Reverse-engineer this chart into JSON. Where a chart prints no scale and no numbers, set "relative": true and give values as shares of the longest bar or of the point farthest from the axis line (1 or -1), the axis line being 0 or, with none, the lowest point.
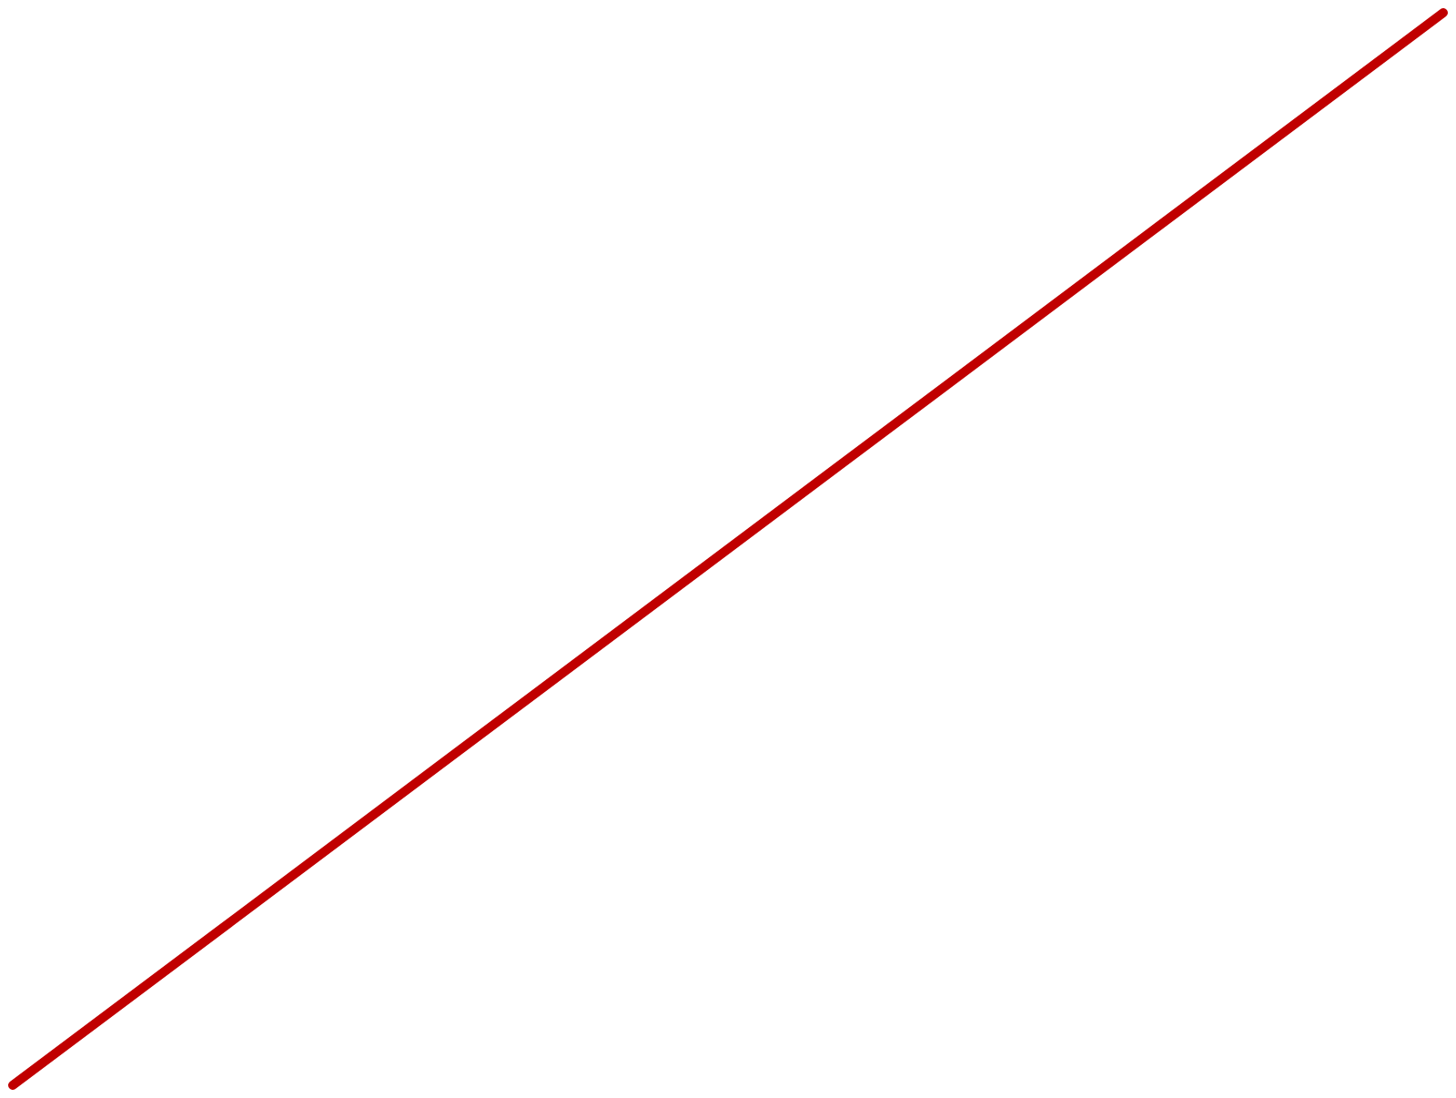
{
  "chart_data": {
    "type": "line",
    "relative": true,
    "categories": [
      null,
      null
    ],
    "series": [
      {
        "color": "#c00000",
        "values": [
          0,
          1
        ]
      }
    ]
  }
}
